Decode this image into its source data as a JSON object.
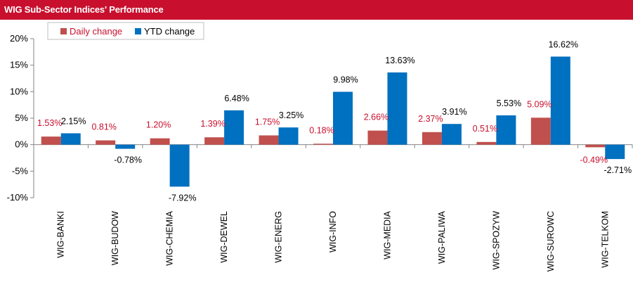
{
  "header": {
    "title": "WIG Sub-Sector Indices' Performance"
  },
  "colors": {
    "title_bar": "#c8102e",
    "daily": "#c0504d",
    "ytd": "#0070c0",
    "daily_label": "#c8102e",
    "ytd_label": "#000000"
  },
  "chart_data": {
    "type": "bar",
    "title": "",
    "xlabel": "",
    "ylabel": "",
    "ylim": [
      -10,
      20
    ],
    "yticks": [
      "20%",
      "15%",
      "10%",
      "5%",
      "0%",
      "-5%",
      "-10%"
    ],
    "grid": false,
    "legend": "top-left",
    "categories": [
      "WIG-BANKI",
      "WIG-BUDOW",
      "WIG-CHEMIA",
      "WIG-DEWEL",
      "WIG-ENERG",
      "WIG-INFO",
      "WIG-MEDIA",
      "WIG-PALIWA",
      "WIG-SPOZYW",
      "WIG-SUROWC",
      "WIG-TELKOM"
    ],
    "series": [
      {
        "name": "Daily change",
        "values": [
          1.53,
          0.81,
          1.2,
          1.39,
          1.75,
          0.18,
          2.66,
          2.37,
          0.51,
          5.09,
          -0.49
        ],
        "labels": [
          "1.53%",
          "0.81%",
          "1.20%",
          "1.39%",
          "1.75%",
          "0.18%",
          "2.66%",
          "2.37%",
          "0.51%",
          "5.09%",
          "-0.49%"
        ]
      },
      {
        "name": "YTD change",
        "values": [
          2.15,
          -0.78,
          -7.92,
          6.48,
          3.25,
          9.98,
          13.63,
          3.91,
          5.53,
          16.62,
          -2.71
        ],
        "labels": [
          "2.15%",
          "-0.78%",
          "-7.92%",
          "6.48%",
          "3.25%",
          "9.98%",
          "13.63%",
          "3.91%",
          "5.53%",
          "16.62%",
          "-2.71%"
        ]
      }
    ]
  }
}
